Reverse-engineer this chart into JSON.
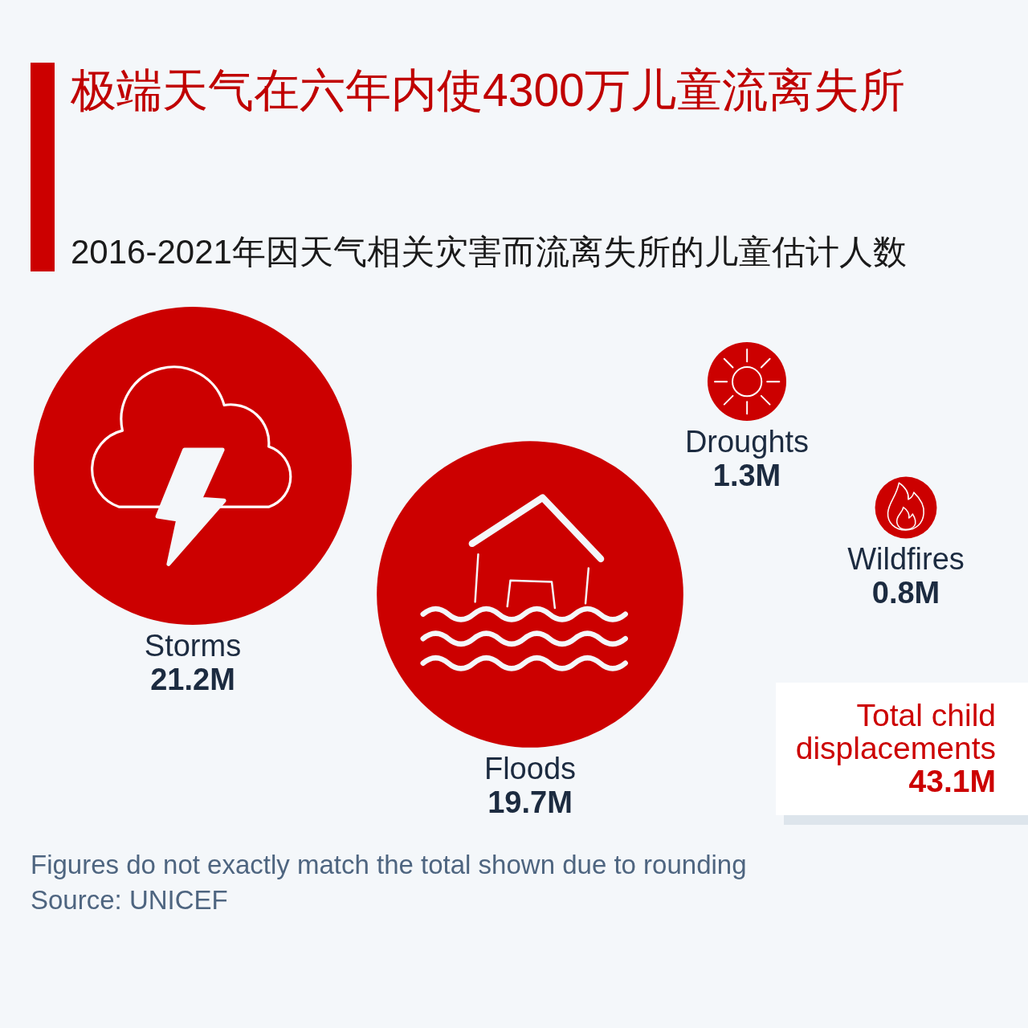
{
  "chart_data": {
    "type": "other",
    "title": "极端天气在六年内使4300万儿童流离失所",
    "subtitle": "2016-2021年因天气相关灾害而流离失所的儿童估计人数",
    "categories": [
      "Storms",
      "Floods",
      "Droughts",
      "Wildfires"
    ],
    "values": [
      21.2,
      19.7,
      1.3,
      0.8
    ],
    "value_labels": [
      "21.2M",
      "19.7M",
      "1.3M",
      "0.8M"
    ],
    "colors": [
      "#cc0000",
      "#cc0000",
      "#cc0000",
      "#cc0000"
    ],
    "annotations": [
      "Total child displacements",
      "43.1M",
      "Figures do not exactly match the total shown due to rounding",
      "Source: UNICEF"
    ]
  }
}
